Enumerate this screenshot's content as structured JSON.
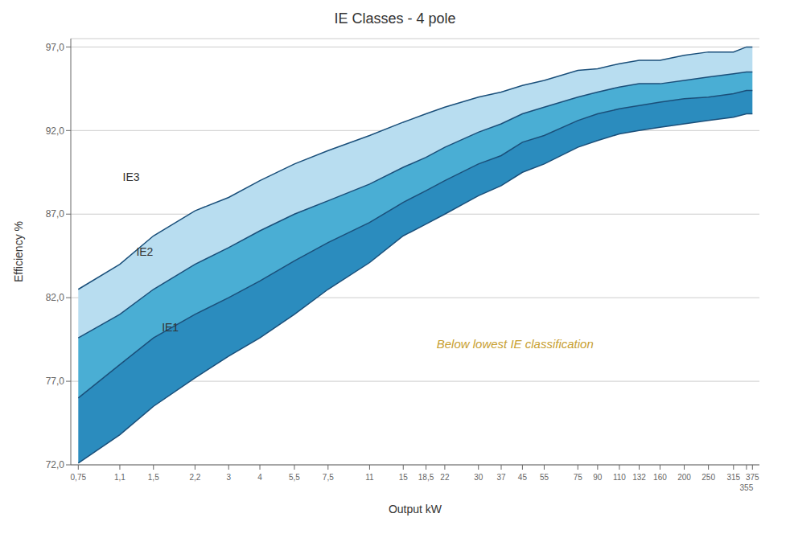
{
  "chart_data": {
    "type": "area",
    "title": "IE Classes - 4 pole",
    "x_label": "Output kW",
    "y_label": "Efficiency %",
    "log": "x",
    "grid": true,
    "color": "#1a4f7a",
    "x": [
      0.75,
      1.1,
      1.5,
      2.2,
      3,
      4,
      5.5,
      7.5,
      11,
      15,
      18.5,
      22,
      30,
      37,
      45,
      55,
      75,
      90,
      110,
      132,
      160,
      200,
      250,
      315,
      355,
      375
    ],
    "xlim": [
      0.7,
      400
    ],
    "xticks": [
      {
        "value": 0.75,
        "label": "0,75"
      },
      {
        "value": 1.1,
        "label": "1,1"
      },
      {
        "value": 1.5,
        "label": "1,5"
      },
      {
        "value": 2.2,
        "label": "2,2"
      },
      3,
      4,
      {
        "value": 5.5,
        "label": "5,5"
      },
      {
        "value": 7.5,
        "label": "7,5"
      },
      11,
      15,
      {
        "value": 18.5,
        "label": "18,5"
      },
      22,
      30,
      37,
      45,
      55,
      75,
      90,
      110,
      132,
      160,
      200,
      250,
      315,
      355,
      375
    ],
    "ylim": [
      72,
      97.5
    ],
    "yticks": [
      {
        "value": 72,
        "label": "72,0"
      },
      {
        "value": 77,
        "label": "77,0"
      },
      {
        "value": 82,
        "label": "82,0"
      },
      {
        "value": 87,
        "label": "87,0"
      },
      {
        "value": 92,
        "label": "92,0"
      },
      {
        "value": 97,
        "label": "97,0"
      }
    ],
    "series": [
      {
        "type": "line",
        "values": [
          72.1,
          73.8,
          75.5,
          77.2,
          78.5,
          79.6,
          81.0,
          82.5,
          84.1,
          85.7,
          86.4,
          87.0,
          88.1,
          88.7,
          89.5,
          90.0,
          91.0,
          91.4,
          91.8,
          92.0,
          92.2,
          92.4,
          92.6,
          92.8,
          93.0,
          93.0
        ]
      },
      {
        "type": "area",
        "color": "#2b8cbe",
        "values": [
          76.0,
          78.0,
          79.6,
          81.0,
          82.0,
          83.0,
          84.2,
          85.3,
          86.5,
          87.7,
          88.4,
          89.0,
          90.0,
          90.5,
          91.3,
          91.7,
          92.6,
          93.0,
          93.3,
          93.5,
          93.7,
          93.9,
          94.0,
          94.2,
          94.4,
          94.4
        ]
      },
      {
        "type": "area",
        "color": "#4aaed4",
        "values": [
          79.6,
          81.0,
          82.5,
          84.0,
          85.0,
          86.0,
          87.0,
          87.8,
          88.8,
          89.8,
          90.4,
          91.0,
          91.9,
          92.4,
          93.0,
          93.4,
          94.0,
          94.3,
          94.6,
          94.8,
          94.8,
          95.0,
          95.2,
          95.4,
          95.5,
          95.5
        ]
      },
      {
        "type": "area",
        "color": "#b8ddf0",
        "values": [
          82.5,
          84.0,
          85.7,
          87.2,
          88.0,
          89.0,
          90.0,
          90.8,
          91.7,
          92.5,
          93.0,
          93.4,
          94.0,
          94.3,
          94.7,
          95.0,
          95.6,
          95.7,
          96.0,
          96.2,
          96.2,
          96.5,
          96.7,
          96.7,
          97.0,
          97.0
        ]
      }
    ],
    "annotations": [
      {
        "text": "IE3",
        "x": 1.13,
        "y": 89.0
      },
      {
        "text": "IE2",
        "x": 1.28,
        "y": 84.5
      },
      {
        "text": "IE1",
        "x": 1.62,
        "y": 80.0
      },
      {
        "text": "Below lowest IE classification",
        "x": 20.4,
        "y": 79.0,
        "color": "#c8a030"
      }
    ]
  }
}
